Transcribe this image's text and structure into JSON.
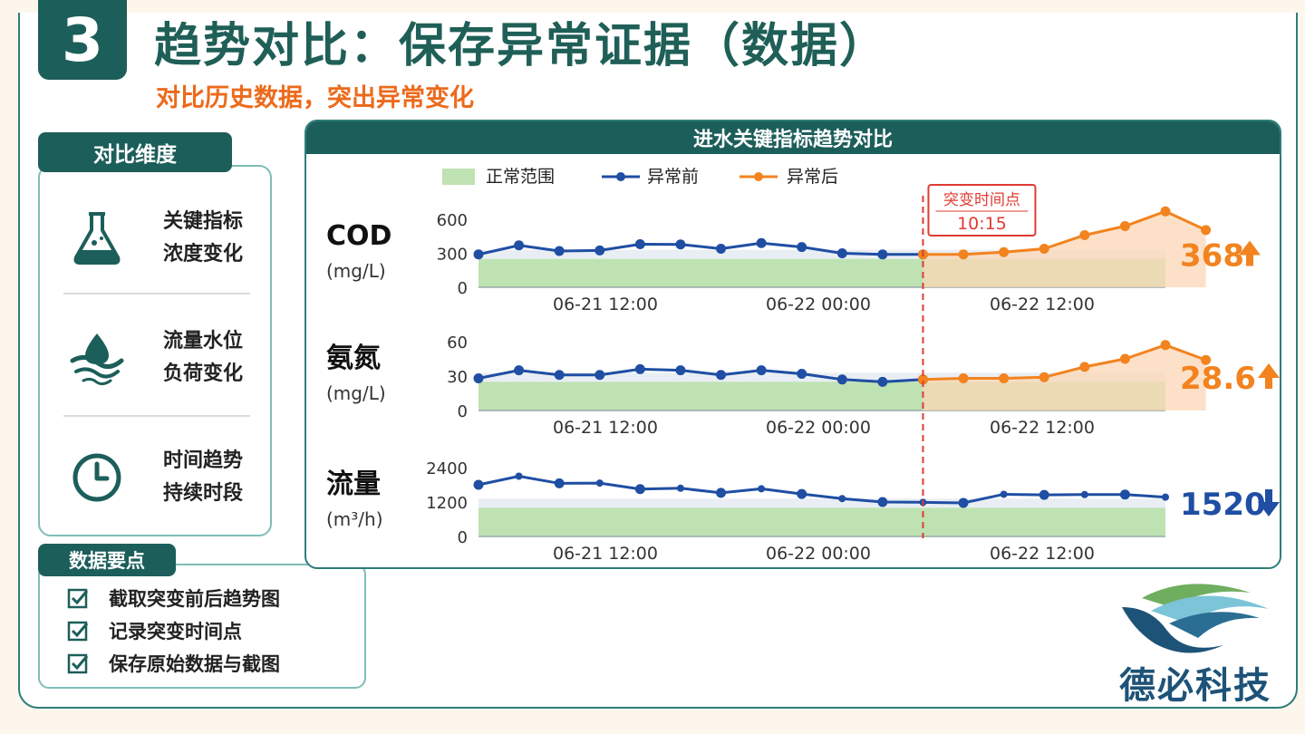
{
  "header": {
    "step_number": "3",
    "title": "趋势对比：保存异常证据（数据）",
    "subtitle": "对比历史数据，突出异常变化"
  },
  "dimensions": {
    "title": "对比维度",
    "items": [
      {
        "icon": "flask-icon",
        "line1": "关键指标",
        "line2": "浓度变化"
      },
      {
        "icon": "water-level-icon",
        "line1": "流量水位",
        "line2": "负荷变化"
      },
      {
        "icon": "clock-icon",
        "line1": "时间趋势",
        "line2": "持续时段"
      }
    ]
  },
  "key_points": {
    "title": "数据要点",
    "items": [
      "截取突变前后趋势图",
      "记录突变时间点",
      "保存原始数据与截图"
    ]
  },
  "logo": {
    "text": "德必科技"
  },
  "colors": {
    "primary": "#1c5e5a",
    "accent": "#ec6a1c",
    "before": "#1f4ea3",
    "after": "#f2831f",
    "normal_range": "#bfe2b2",
    "marker": "#e03b32"
  },
  "chart_data": {
    "type": "line",
    "title": "进水关键指标趋势对比",
    "legend": {
      "placement": "top",
      "items": [
        {
          "label": "正常范围",
          "kind": "band"
        },
        {
          "label": "异常前",
          "kind": "series-before"
        },
        {
          "label": "异常后",
          "kind": "series-after"
        }
      ]
    },
    "marker": {
      "label": "突变时间点",
      "time": "10:15"
    },
    "x_ticks": [
      "06-21 12:00",
      "06-22 00:00",
      "06-22 12:00"
    ],
    "panels": [
      {
        "name": "COD",
        "unit": "(mg/L)",
        "y_ticks": [
          "600",
          "300",
          "0"
        ],
        "ylim": [
          0,
          600
        ],
        "normal_range": [
          0,
          250
        ],
        "before": [
          290,
          370,
          320,
          325,
          380,
          378,
          340,
          390,
          355,
          300,
          290,
          290
        ],
        "after": [
          290,
          290,
          310,
          340,
          460,
          540,
          670,
          505
        ],
        "current": "368",
        "trend": "up"
      },
      {
        "name": "氨氮",
        "unit": "(mg/L)",
        "y_ticks": [
          "60",
          "30",
          "0"
        ],
        "ylim": [
          0,
          60
        ],
        "normal_range": [
          0,
          25
        ],
        "before": [
          28,
          35,
          31,
          31,
          36,
          35,
          31,
          35,
          32,
          27,
          25,
          27
        ],
        "after": [
          27,
          28,
          28,
          29,
          38,
          45,
          57,
          44
        ],
        "current": "28.6",
        "trend": "up"
      },
      {
        "name": "流量",
        "unit": "(m³/h)",
        "y_ticks": [
          "2400",
          "1200",
          "0"
        ],
        "ylim": [
          0,
          2400
        ],
        "normal_range": [
          0,
          1000
        ],
        "series": [
          1800,
          2100,
          1850,
          1860,
          1650,
          1680,
          1520,
          1660,
          1480,
          1320,
          1200,
          1190,
          1170,
          1470,
          1450,
          1460,
          1460,
          1370
        ],
        "current": "1520",
        "trend": "down"
      }
    ]
  }
}
